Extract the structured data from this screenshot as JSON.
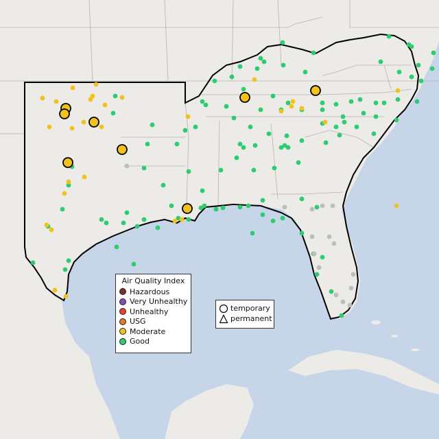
{
  "legend": {
    "title": "Air Quality Index",
    "items": [
      {
        "label": "Hazardous",
        "color": "#7e2f2f"
      },
      {
        "label": "Very Unhealthy",
        "color": "#8a4bb2"
      },
      {
        "label": "Unhealthy",
        "color": "#e8422d"
      },
      {
        "label": "USG",
        "color": "#e8782a"
      },
      {
        "label": "Moderate",
        "color": "#f2c21b"
      },
      {
        "label": "Good",
        "color": "#2ecc71"
      }
    ]
  },
  "shape_legend": {
    "items": [
      {
        "label": "temporary",
        "shape": "circle"
      },
      {
        "label": "permanent",
        "shape": "triangle"
      }
    ]
  },
  "colors": {
    "water": "#c6d6e8",
    "land": "#ecebe8",
    "region_land": "#eceae6",
    "state_border": "#b7b3ae",
    "region_outline": "#000000",
    "good": "#2ecc71",
    "moderate": "#f2c21b",
    "no_data": "#bdbdbd"
  }
}
